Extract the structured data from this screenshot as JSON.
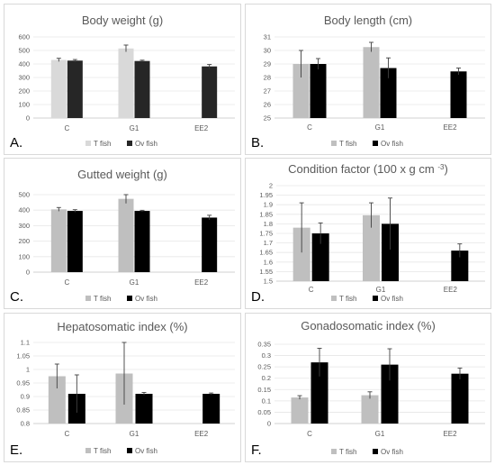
{
  "colors": {
    "t_fish": "#bfbfbf",
    "t_fish_light": "#d9d9d9",
    "ov_fish": "#000000",
    "ov_fish_dark": "#262626"
  },
  "chart_data": [
    {
      "type": "bar",
      "panel_label": "A.",
      "title": "Body weight (g)",
      "categories": [
        "C",
        "G1",
        "EE2"
      ],
      "ylim": [
        0,
        600
      ],
      "yticks": [
        0,
        100,
        200,
        300,
        400,
        500,
        600
      ],
      "ytick_labels": [
        "0",
        "100",
        "200",
        "300",
        "400",
        "500",
        "600"
      ],
      "series": [
        {
          "name": "T fish",
          "values": [
            430,
            515,
            null
          ],
          "errors": [
            12,
            25,
            null
          ],
          "color": "#d9d9d9"
        },
        {
          "name": "Ov fish",
          "values": [
            425,
            422,
            382
          ],
          "errors": [
            8,
            6,
            14
          ],
          "color": "#262626"
        }
      ],
      "legend": "bottom"
    },
    {
      "type": "bar",
      "panel_label": "B.",
      "title": "Body length (cm)",
      "categories": [
        "C",
        "G1",
        "EE2"
      ],
      "ylim": [
        25,
        31
      ],
      "yticks": [
        25,
        26,
        27,
        28,
        29,
        30,
        31
      ],
      "ytick_labels": [
        "25",
        "26",
        "27",
        "28",
        "29",
        "30",
        "31"
      ],
      "series": [
        {
          "name": "T fish",
          "values": [
            29.0,
            30.25,
            null
          ],
          "errors": [
            1.0,
            0.35,
            null
          ],
          "color": "#bfbfbf"
        },
        {
          "name": "Ov fish",
          "values": [
            29.0,
            28.7,
            28.45
          ],
          "errors": [
            0.4,
            0.75,
            0.25
          ],
          "color": "#000000"
        }
      ],
      "legend": "bottom"
    },
    {
      "type": "bar",
      "panel_label": "C.",
      "title": "Gutted weight (g)",
      "categories": [
        "C",
        "G1",
        "EE2"
      ],
      "ylim": [
        0,
        500
      ],
      "yticks": [
        0,
        100,
        200,
        300,
        400,
        500
      ],
      "ytick_labels": [
        "0",
        "100",
        "200",
        "300",
        "400",
        "500"
      ],
      "series": [
        {
          "name": "T fish",
          "values": [
            405,
            473,
            null
          ],
          "errors": [
            12,
            30,
            null
          ],
          "color": "#bfbfbf"
        },
        {
          "name": "Ov fish",
          "values": [
            395,
            395,
            352
          ],
          "errors": [
            8,
            4,
            15
          ],
          "color": "#000000"
        }
      ],
      "legend": "bottom"
    },
    {
      "type": "bar",
      "panel_label": "D.",
      "title": "Condition factor (100 x g cm ",
      "title_sup": "-3",
      "title_end": ")",
      "categories": [
        "C",
        "G1",
        "EE2"
      ],
      "ylim": [
        1.5,
        2.0
      ],
      "yticks": [
        1.5,
        1.55,
        1.6,
        1.65,
        1.7,
        1.75,
        1.8,
        1.85,
        1.9,
        1.95,
        2.0
      ],
      "ytick_labels": [
        "1.5",
        "1.55",
        "1.6",
        "1.65",
        "1.7",
        "1.75",
        "1.8",
        "1.85",
        "1.9",
        "1.95",
        "2"
      ],
      "series": [
        {
          "name": "T fish",
          "values": [
            1.78,
            1.845,
            null
          ],
          "errors": [
            0.13,
            0.065,
            null
          ],
          "color": "#bfbfbf"
        },
        {
          "name": "Ov fish",
          "values": [
            1.75,
            1.8,
            1.66
          ],
          "errors": [
            0.055,
            0.135,
            0.035
          ],
          "color": "#000000"
        }
      ],
      "legend": "bottom"
    },
    {
      "type": "bar",
      "panel_label": "E.",
      "title": "Hepatosomatic index (%)",
      "categories": [
        "C",
        "G1",
        "EE2"
      ],
      "ylim": [
        0.8,
        1.1
      ],
      "yticks": [
        0.8,
        0.85,
        0.9,
        0.95,
        1.0,
        1.05,
        1.1
      ],
      "ytick_labels": [
        "0.8",
        "0.85",
        "0.9",
        "0.95",
        "1",
        "1.05",
        "1.1"
      ],
      "series": [
        {
          "name": "T fish",
          "values": [
            0.975,
            0.985,
            null
          ],
          "errors": [
            0.045,
            0.115,
            null
          ],
          "color": "#bfbfbf"
        },
        {
          "name": "Ov fish",
          "values": [
            0.91,
            0.91,
            0.91
          ],
          "errors": [
            0.07,
            0.005,
            0.003
          ],
          "color": "#000000"
        }
      ],
      "legend": "bottom"
    },
    {
      "type": "bar",
      "panel_label": "F.",
      "title": "Gonadosomatic index (%)",
      "categories": [
        "C",
        "G1",
        "EE2"
      ],
      "ylim": [
        0,
        0.35
      ],
      "yticks": [
        0,
        0.05,
        0.1,
        0.15,
        0.2,
        0.25,
        0.3,
        0.35
      ],
      "ytick_labels": [
        "0",
        "0.05",
        "0.1",
        "0.15",
        "0.2",
        "0.25",
        "0.3",
        "0.35"
      ],
      "series": [
        {
          "name": "T fish",
          "values": [
            0.115,
            0.125,
            null
          ],
          "errors": [
            0.008,
            0.015,
            null
          ],
          "color": "#bfbfbf"
        },
        {
          "name": "Ov fish",
          "values": [
            0.27,
            0.26,
            0.22
          ],
          "errors": [
            0.062,
            0.07,
            0.025
          ],
          "color": "#000000"
        }
      ],
      "legend": "bottom"
    }
  ]
}
